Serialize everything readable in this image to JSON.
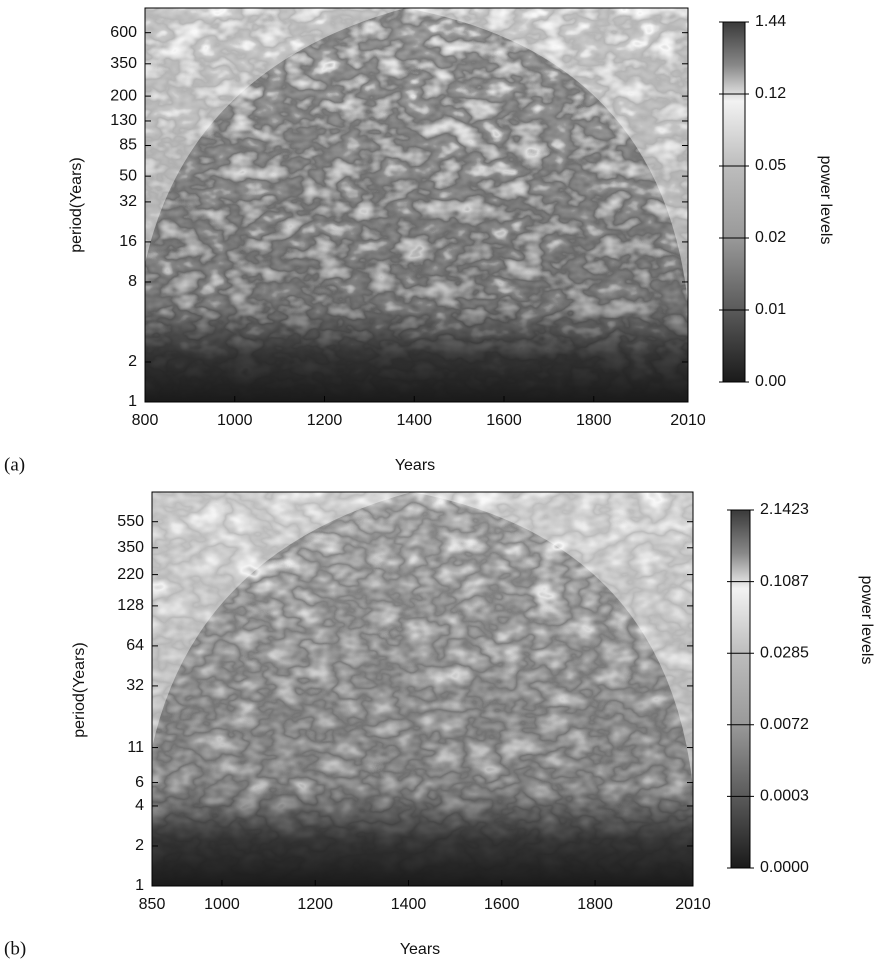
{
  "chart_data": [
    {
      "type": "heatmap",
      "panel_label": "(a)",
      "x_label": "Years",
      "y_label": "period(Years)",
      "xlim": [
        800,
        2010
      ],
      "xticks": [
        800,
        1000,
        1200,
        1400,
        1600,
        1800,
        2010
      ],
      "ylim": [
        1,
        920
      ],
      "log_y": true,
      "yticks": [
        1,
        2,
        8,
        16,
        32,
        50,
        85,
        130,
        200,
        350,
        600
      ],
      "colorbar_label": "power levels",
      "colorbar_ticks": [
        1.44,
        0.12,
        0.05,
        0.02,
        0.01,
        {
          "value": 0,
          "label": "0.00"
        }
      ]
    },
    {
      "type": "heatmap",
      "panel_label": "(b)",
      "x_label": "Years",
      "y_label": "period(Years)",
      "xlim": [
        850,
        2010
      ],
      "xticks": [
        850,
        1000,
        1200,
        1400,
        1600,
        1800,
        2010
      ],
      "ylim": [
        1,
        920
      ],
      "log_y": true,
      "yticks": [
        1,
        2,
        4,
        6,
        11,
        32,
        64,
        128,
        220,
        350,
        550
      ],
      "colorbar_label": "power levels",
      "colorbar_ticks": [
        2.1423,
        0.1087,
        0.0285,
        0.0072,
        0.0003,
        {
          "value": 0,
          "label": "0.0000"
        }
      ]
    }
  ]
}
